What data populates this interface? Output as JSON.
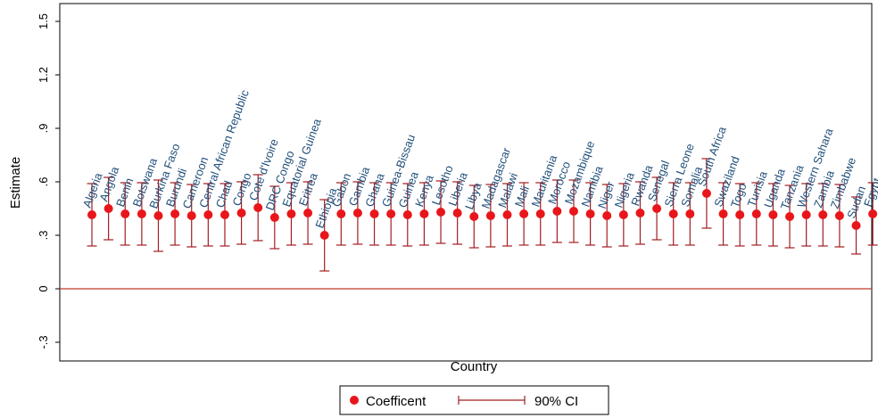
{
  "chart_data": {
    "type": "scatter",
    "subtype": "point estimates with 90% confidence intervals",
    "xlabel": "Country",
    "ylabel": "Estimate",
    "ylim": [
      -0.4,
      1.5
    ],
    "yticks": [
      "-.3",
      "0",
      ".3",
      ".6",
      ".9",
      "1.2",
      "1.5"
    ],
    "reference_line": {
      "y": 0,
      "color": "#c0392b"
    },
    "grid": false,
    "legend": {
      "position": "bottom-center",
      "entries": [
        {
          "label": "Coefficent",
          "marker": "circle"
        },
        {
          "label": "90% CI",
          "marker": "capped-range"
        }
      ]
    },
    "colors": {
      "marker": "#e8161b",
      "ci": "#a21d21",
      "label": "#1f4e79",
      "zero_line": "#c0392b"
    },
    "countries": [
      {
        "name": "Algeria",
        "estimate": 0.415,
        "ci_low": 0.24,
        "ci_high": 0.59
      },
      {
        "name": "Angola",
        "estimate": 0.45,
        "ci_low": 0.275,
        "ci_high": 0.625
      },
      {
        "name": "Benin",
        "estimate": 0.42,
        "ci_low": 0.245,
        "ci_high": 0.595
      },
      {
        "name": "Botswana",
        "estimate": 0.42,
        "ci_low": 0.245,
        "ci_high": 0.595
      },
      {
        "name": "Burkina Faso",
        "estimate": 0.41,
        "ci_low": 0.21,
        "ci_high": 0.61
      },
      {
        "name": "Burundi",
        "estimate": 0.42,
        "ci_low": 0.245,
        "ci_high": 0.595
      },
      {
        "name": "Cameroon",
        "estimate": 0.41,
        "ci_low": 0.235,
        "ci_high": 0.585
      },
      {
        "name": "Central African Republic",
        "estimate": 0.415,
        "ci_low": 0.24,
        "ci_high": 0.59
      },
      {
        "name": "Chad",
        "estimate": 0.415,
        "ci_low": 0.24,
        "ci_high": 0.59
      },
      {
        "name": "Congo",
        "estimate": 0.425,
        "ci_low": 0.25,
        "ci_high": 0.6
      },
      {
        "name": "Cote d'Ivoire",
        "estimate": 0.455,
        "ci_low": 0.27,
        "ci_high": 0.64
      },
      {
        "name": "DRC Congo",
        "estimate": 0.4,
        "ci_low": 0.225,
        "ci_high": 0.575
      },
      {
        "name": "Equatorial Guinea",
        "estimate": 0.42,
        "ci_low": 0.245,
        "ci_high": 0.595
      },
      {
        "name": "Eritrea",
        "estimate": 0.425,
        "ci_low": 0.25,
        "ci_high": 0.6
      },
      {
        "name": "Ethiopia",
        "estimate": 0.3,
        "ci_low": 0.1,
        "ci_high": 0.5
      },
      {
        "name": "Gabon",
        "estimate": 0.42,
        "ci_low": 0.245,
        "ci_high": 0.595
      },
      {
        "name": "Gambia",
        "estimate": 0.425,
        "ci_low": 0.25,
        "ci_high": 0.6
      },
      {
        "name": "Ghana",
        "estimate": 0.42,
        "ci_low": 0.245,
        "ci_high": 0.595
      },
      {
        "name": "Guinea-Bissau",
        "estimate": 0.42,
        "ci_low": 0.245,
        "ci_high": 0.595
      },
      {
        "name": "Guinea",
        "estimate": 0.415,
        "ci_low": 0.24,
        "ci_high": 0.59
      },
      {
        "name": "Kenya",
        "estimate": 0.42,
        "ci_low": 0.245,
        "ci_high": 0.595
      },
      {
        "name": "Lesotho",
        "estimate": 0.43,
        "ci_low": 0.255,
        "ci_high": 0.605
      },
      {
        "name": "Liberia",
        "estimate": 0.425,
        "ci_low": 0.25,
        "ci_high": 0.6
      },
      {
        "name": "Libya",
        "estimate": 0.405,
        "ci_low": 0.23,
        "ci_high": 0.58
      },
      {
        "name": "Madagascar",
        "estimate": 0.41,
        "ci_low": 0.235,
        "ci_high": 0.585
      },
      {
        "name": "Malawi",
        "estimate": 0.415,
        "ci_low": 0.24,
        "ci_high": 0.59
      },
      {
        "name": "Mali",
        "estimate": 0.42,
        "ci_low": 0.245,
        "ci_high": 0.595
      },
      {
        "name": "Mauritania",
        "estimate": 0.42,
        "ci_low": 0.245,
        "ci_high": 0.595
      },
      {
        "name": "Morocco",
        "estimate": 0.435,
        "ci_low": 0.26,
        "ci_high": 0.61
      },
      {
        "name": "Mozambique",
        "estimate": 0.435,
        "ci_low": 0.26,
        "ci_high": 0.61
      },
      {
        "name": "Namibia",
        "estimate": 0.42,
        "ci_low": 0.245,
        "ci_high": 0.595
      },
      {
        "name": "Niger",
        "estimate": 0.41,
        "ci_low": 0.235,
        "ci_high": 0.585
      },
      {
        "name": "Nigeria",
        "estimate": 0.415,
        "ci_low": 0.24,
        "ci_high": 0.59
      },
      {
        "name": "Rwanda",
        "estimate": 0.425,
        "ci_low": 0.25,
        "ci_high": 0.6
      },
      {
        "name": "Senegal",
        "estimate": 0.45,
        "ci_low": 0.275,
        "ci_high": 0.625
      },
      {
        "name": "Sierra Leone",
        "estimate": 0.42,
        "ci_low": 0.245,
        "ci_high": 0.595
      },
      {
        "name": "Somalia",
        "estimate": 0.42,
        "ci_low": 0.245,
        "ci_high": 0.595
      },
      {
        "name": "South Africa",
        "estimate": 0.535,
        "ci_low": 0.34,
        "ci_high": 0.73
      },
      {
        "name": "Swaziland",
        "estimate": 0.42,
        "ci_low": 0.245,
        "ci_high": 0.595
      },
      {
        "name": "Togo",
        "estimate": 0.415,
        "ci_low": 0.24,
        "ci_high": 0.59
      },
      {
        "name": "Tunisia",
        "estimate": 0.42,
        "ci_low": 0.245,
        "ci_high": 0.595
      },
      {
        "name": "Uganda",
        "estimate": 0.415,
        "ci_low": 0.24,
        "ci_high": 0.59
      },
      {
        "name": "Tanzania",
        "estimate": 0.405,
        "ci_low": 0.23,
        "ci_high": 0.58
      },
      {
        "name": "Western Sahara",
        "estimate": 0.415,
        "ci_low": 0.24,
        "ci_high": 0.59
      },
      {
        "name": "Zambia",
        "estimate": 0.415,
        "ci_low": 0.24,
        "ci_high": 0.59
      },
      {
        "name": "Zimbabwe",
        "estimate": 0.41,
        "ci_low": 0.235,
        "ci_high": 0.585
      },
      {
        "name": "Sudan",
        "estimate": 0.355,
        "ci_low": 0.195,
        "ci_high": 0.515
      },
      {
        "name": "Egypt",
        "estimate": 0.42,
        "ci_low": 0.245,
        "ci_high": 0.595
      }
    ]
  }
}
